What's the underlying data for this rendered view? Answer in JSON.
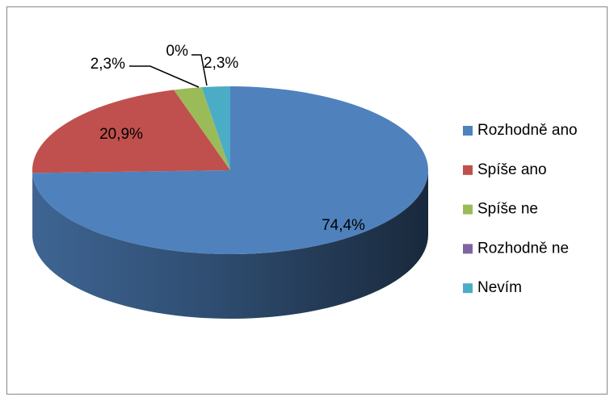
{
  "chart_data": {
    "type": "pie",
    "categories": [
      "Rozhodně ano",
      "Spíše ano",
      "Spíše ne",
      "Rozhodně ne",
      "Nevím"
    ],
    "values": [
      74.4,
      20.9,
      2.3,
      0,
      2.3
    ],
    "value_labels": [
      "74,4%",
      "20,9%",
      "2,3%",
      "0%",
      "2,3%"
    ],
    "colors": [
      "#4f81bd",
      "#c0504d",
      "#9bbb59",
      "#8064a2",
      "#4bacc6"
    ],
    "legend": "right"
  }
}
